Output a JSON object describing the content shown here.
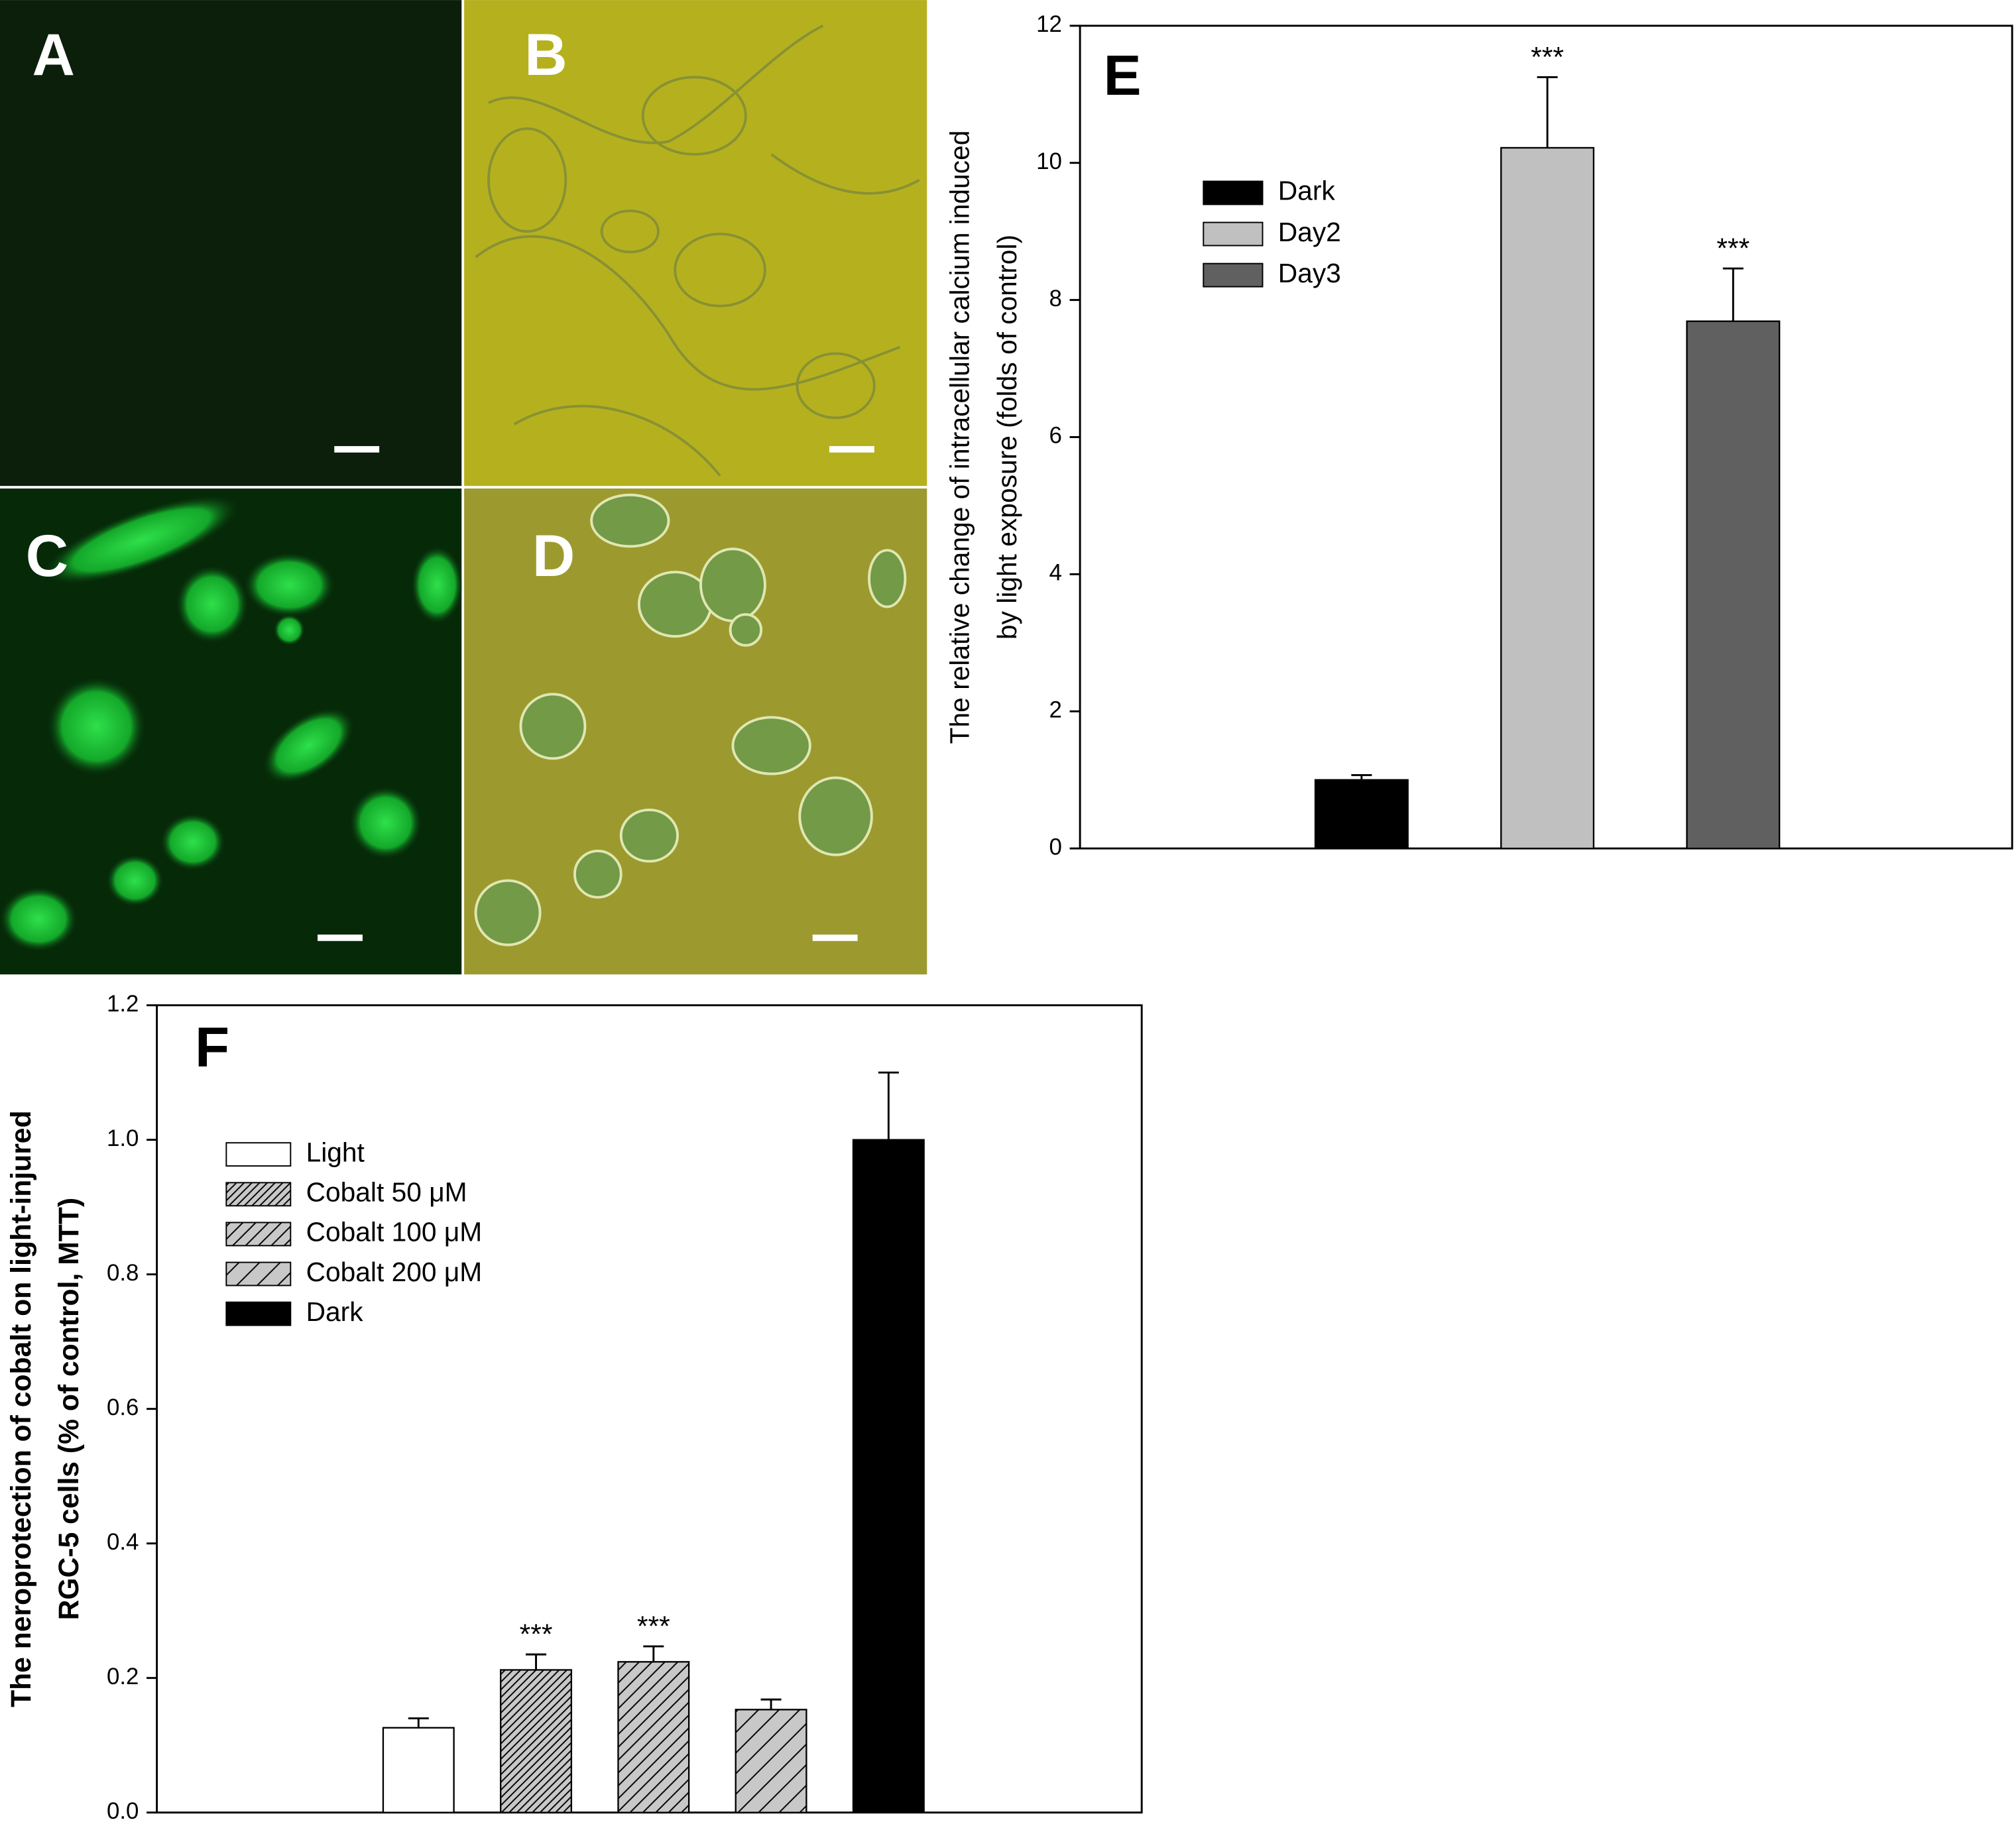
{
  "panels": [
    "A",
    "B",
    "C",
    "D"
  ],
  "chart_data": [
    {
      "type": "bar",
      "label": "E",
      "y_label": [
        "The relative change of intracellular calcium induced",
        "by light exposure (folds of control)"
      ],
      "ylim": [
        0,
        12
      ],
      "yticks": [
        0,
        2,
        4,
        6,
        8,
        10,
        12
      ],
      "legend": "upper left",
      "series": [
        {
          "name": "Dark",
          "color": "#000000",
          "pattern": "solid",
          "values": [
            1.0
          ],
          "errors": [
            0.07
          ],
          "significance": [
            null
          ]
        },
        {
          "name": "Day2",
          "color": "#c0c0c0",
          "pattern": "solid",
          "values": [
            10.22
          ],
          "errors": [
            1.03
          ],
          "significance": [
            "***"
          ]
        },
        {
          "name": "Day3",
          "color": "#606060",
          "pattern": "solid",
          "values": [
            7.69
          ],
          "errors": [
            0.77
          ],
          "significance": [
            "***"
          ]
        }
      ]
    },
    {
      "type": "bar",
      "label": "F",
      "y_label": [
        "The neroprotection of cobalt on light-injured",
        "RGC-5 cells (% of control, MTT)"
      ],
      "ylim": [
        0,
        1.2
      ],
      "yticks": [
        {
          "value": 0,
          "label": "0.0"
        },
        0.2,
        0.4,
        0.6,
        0.8,
        {
          "value": 1,
          "label": "1.0"
        },
        1.2
      ],
      "legend": "upper left",
      "series": [
        {
          "name": "Light",
          "color": "#ffffff",
          "pattern": "solid",
          "values": [
            0.126
          ],
          "errors": [
            0.014
          ],
          "significance": [
            null
          ]
        },
        {
          "name": "Cobalt 50 μM",
          "color": "#c8c8c8",
          "pattern": "hatch-dense",
          "values": [
            0.212
          ],
          "errors": [
            0.023
          ],
          "significance": [
            "***"
          ]
        },
        {
          "name": "Cobalt 100 μM",
          "color": "#c8c8c8",
          "pattern": "hatch",
          "values": [
            0.224
          ],
          "errors": [
            0.023
          ],
          "significance": [
            "***"
          ]
        },
        {
          "name": "Cobalt 200 μM",
          "color": "#c8c8c8",
          "pattern": "hatch-wide",
          "values": [
            0.153
          ],
          "errors": [
            0.015
          ],
          "significance": [
            null
          ]
        },
        {
          "name": "Dark",
          "color": "#000000",
          "pattern": "solid",
          "values": [
            1.0
          ],
          "errors": [
            0.1
          ],
          "significance": [
            null
          ]
        }
      ]
    }
  ]
}
